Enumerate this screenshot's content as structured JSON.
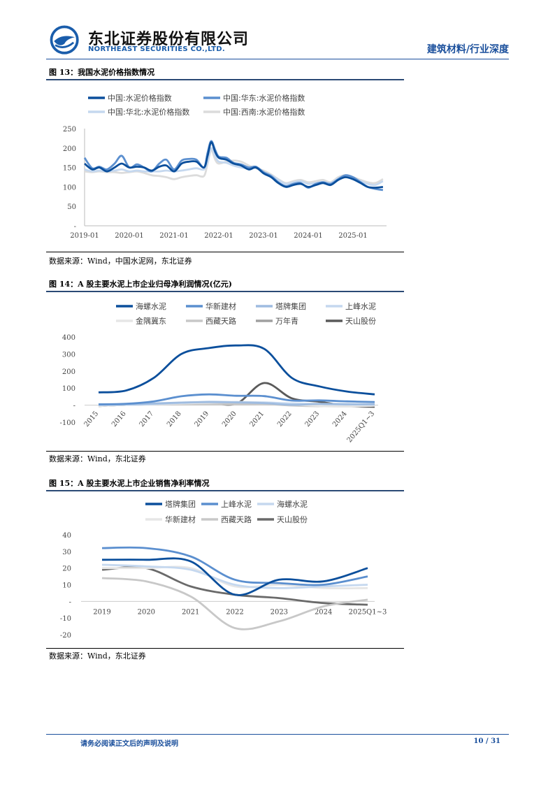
{
  "header": {
    "company_cn": "东北证券股份有限公司",
    "company_en": "NORTHEAST SECURITIES CO.,LTD.",
    "category": "建筑材料/行业深度"
  },
  "figures": [
    {
      "title": "图 13：我国水泥价格指数情况",
      "source": "数据来源：Wind，中国水泥网，东北证券"
    },
    {
      "title": "图 14：A 股主要水泥上市企业归母净利润情况(亿元)",
      "source": "数据来源：Wind，东北证券"
    },
    {
      "title": "图 15：A 股主要水泥上市企业销售净利率情况",
      "source": "数据来源：Wind，东北证券"
    }
  ],
  "chart_data": [
    {
      "type": "line",
      "title": "我国水泥价格指数情况",
      "ylim": [
        0,
        250
      ],
      "yticks": [
        "250",
        "200",
        "150",
        "100",
        "50",
        "-"
      ],
      "xticks": [
        "2019-01",
        "2020-01",
        "2021-01",
        "2022-01",
        "2023-01",
        "2024-01",
        "2025-01"
      ],
      "x": [
        2019.0,
        2019.17,
        2019.33,
        2019.5,
        2019.67,
        2019.83,
        2020.0,
        2020.17,
        2020.33,
        2020.5,
        2020.67,
        2020.83,
        2021.0,
        2021.17,
        2021.33,
        2021.5,
        2021.67,
        2021.75,
        2021.83,
        2021.92,
        2022.0,
        2022.17,
        2022.33,
        2022.5,
        2022.67,
        2022.83,
        2023.0,
        2023.17,
        2023.33,
        2023.5,
        2023.67,
        2023.83,
        2024.0,
        2024.17,
        2024.33,
        2024.5,
        2024.67,
        2024.83,
        2025.0,
        2025.17,
        2025.33,
        2025.5,
        2025.67
      ],
      "series": [
        {
          "name": "中国:水泥价格指数",
          "color": "#0b4f9c",
          "values": [
            160,
            145,
            150,
            140,
            150,
            160,
            150,
            152,
            150,
            142,
            152,
            155,
            140,
            160,
            165,
            165,
            150,
            180,
            215,
            190,
            175,
            170,
            160,
            155,
            145,
            150,
            135,
            125,
            110,
            100,
            105,
            108,
            100,
            105,
            110,
            105,
            118,
            125,
            120,
            110,
            100,
            98,
            100
          ]
        },
        {
          "name": "中国:华东:水泥价格指数",
          "color": "#5b8fcf",
          "values": [
            175,
            148,
            152,
            145,
            160,
            180,
            150,
            158,
            150,
            140,
            160,
            170,
            145,
            168,
            172,
            170,
            150,
            188,
            218,
            195,
            178,
            175,
            162,
            158,
            150,
            152,
            138,
            128,
            112,
            102,
            108,
            110,
            98,
            108,
            112,
            108,
            120,
            130,
            125,
            112,
            100,
            95,
            92
          ]
        },
        {
          "name": "中国:华北:水泥价格指数",
          "color": "#c5d8ef",
          "values": [
            145,
            140,
            142,
            140,
            142,
            145,
            140,
            142,
            140,
            140,
            140,
            142,
            140,
            142,
            145,
            148,
            145,
            165,
            200,
            178,
            165,
            162,
            155,
            150,
            148,
            150,
            138,
            130,
            118,
            108,
            112,
            115,
            108,
            110,
            112,
            110,
            122,
            128,
            122,
            115,
            108,
            105,
            115
          ]
        },
        {
          "name": "中国:西南:水泥价格指数",
          "color": "#dcdcdc",
          "values": [
            140,
            138,
            140,
            138,
            138,
            136,
            138,
            140,
            136,
            130,
            128,
            125,
            120,
            125,
            128,
            130,
            128,
            160,
            195,
            170,
            160,
            165,
            168,
            165,
            155,
            148,
            142,
            132,
            120,
            110,
            115,
            118,
            112,
            115,
            118,
            112,
            125,
            130,
            125,
            118,
            112,
            110,
            120
          ]
        }
      ]
    },
    {
      "type": "line",
      "title": "A 股主要水泥上市企业归母净利润情况(亿元)",
      "ylim": [
        -100,
        400
      ],
      "yticks": [
        "400",
        "300",
        "200",
        "100",
        "-",
        "-100"
      ],
      "categories": [
        "2015",
        "2016",
        "2017",
        "2018",
        "2019",
        "2020",
        "2021",
        "2022",
        "2023",
        "2024",
        "2025Q1~3"
      ],
      "series": [
        {
          "name": "海螺水泥",
          "color": "#0b4f9c",
          "values": [
            75,
            86,
            160,
            300,
            335,
            350,
            330,
            160,
            110,
            80,
            63
          ]
        },
        {
          "name": "华新建材",
          "color": "#5b8fcf",
          "values": [
            5,
            8,
            22,
            52,
            63,
            55,
            53,
            27,
            28,
            22,
            18
          ]
        },
        {
          "name": "塔牌集团",
          "color": "#9fbce0",
          "values": [
            3,
            5,
            10,
            15,
            18,
            16,
            12,
            2,
            8,
            6,
            5
          ]
        },
        {
          "name": "上峰水泥",
          "color": "#c5d8ef",
          "values": [
            0,
            2,
            6,
            13,
            20,
            18,
            16,
            10,
            6,
            4,
            3
          ]
        },
        {
          "name": "金隅冀东",
          "color": "#e6e6e6",
          "values": [
            -5,
            2,
            5,
            10,
            14,
            18,
            15,
            5,
            -5,
            -8,
            -3
          ]
        },
        {
          "name": "西藏天路",
          "color": "#c8c8c8",
          "values": [
            1,
            2,
            4,
            6,
            6,
            5,
            7,
            -2,
            -6,
            -3,
            -2
          ]
        },
        {
          "name": "万年青",
          "color": "#a0a0a0",
          "values": [
            2,
            3,
            8,
            12,
            14,
            12,
            10,
            5,
            2,
            0,
            1
          ]
        },
        {
          "name": "天山股份",
          "color": "#5a5a5a",
          "values": [
            -5,
            2,
            5,
            12,
            15,
            10,
            130,
            40,
            20,
            -5,
            -10
          ]
        }
      ]
    },
    {
      "type": "line",
      "title": "A 股主要水泥上市企业销售净利率情况",
      "ylim": [
        -20,
        40
      ],
      "yticks": [
        "40",
        "30",
        "20",
        "10",
        "-",
        "-10",
        "-20"
      ],
      "categories": [
        "2019",
        "2020",
        "2021",
        "2022",
        "2023",
        "2024",
        "2025Q1~3"
      ],
      "series": [
        {
          "name": "塔牌集团",
          "color": "#0b4f9c",
          "values": [
            25,
            25,
            24,
            4,
            13,
            12,
            20
          ]
        },
        {
          "name": "上峰水泥",
          "color": "#5b8fcf",
          "values": [
            32,
            32,
            27,
            13,
            11,
            10,
            15
          ]
        },
        {
          "name": "海螺水泥",
          "color": "#c5d8ef",
          "values": [
            22,
            21,
            19,
            10,
            8,
            9,
            10
          ]
        },
        {
          "name": "华新建材",
          "color": "#e6e6e6",
          "values": [
            20,
            20,
            20,
            9,
            10,
            8,
            8
          ]
        },
        {
          "name": "西藏天路",
          "color": "#c8c8c8",
          "values": [
            14,
            12,
            3,
            -16,
            -12,
            -3,
            1
          ]
        },
        {
          "name": "天山股份",
          "color": "#6a6a6a",
          "values": [
            19,
            20,
            9,
            4,
            2,
            -1,
            -2
          ]
        }
      ]
    }
  ],
  "footer": {
    "disclaimer": "请务必阅读正文后的声明及说明",
    "page": "10 / 31"
  }
}
